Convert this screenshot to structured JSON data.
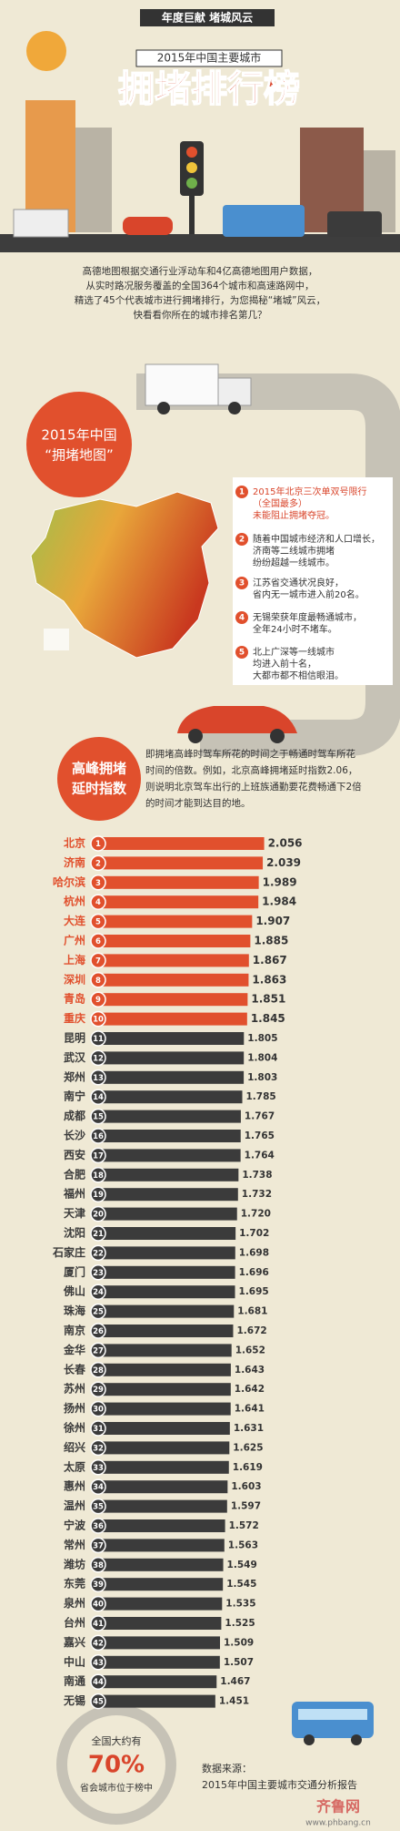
{
  "header": {
    "banner": "年度巨献 堵城风云",
    "subtitle": "2015年中国主要城市",
    "title": "拥堵排行榜"
  },
  "intro": [
    "高德地图根据交通行业浮动车和4亿高德地图用户数据，",
    "从实时路况服务覆盖的全国364个城市和高速路网中，",
    "精选了45个代表城市进行拥堵排行，为您揭秘“堵城”风云，",
    "快看看你所在的城市排名第几？"
  ],
  "map_section": {
    "title_lines": [
      "2015年中国",
      "“拥堵地图”"
    ],
    "points": [
      {
        "number": 1,
        "lines": [
          "2015年北京三次单双号限行",
          "（全国最多）",
          "未能阻止拥堵夺冠。"
        ]
      },
      {
        "number": 2,
        "lines": [
          "随着中国城市经济和人口增长，",
          "济南等二线城市拥堵",
          "纷纷超越一线城市。"
        ]
      },
      {
        "number": 3,
        "lines": [
          "江苏省交通状况良好，",
          "省内无一城市进入前20名。"
        ]
      },
      {
        "number": 4,
        "lines": [
          "无锡荣获年度最畅通城市，",
          "全年24小时不堵车。"
        ]
      },
      {
        "number": 5,
        "lines": [
          "北上广深等一线城市",
          "均进入前十名，",
          "大都市都不相信眼泪。"
        ]
      }
    ]
  },
  "index_section": {
    "title_lines": [
      "高峰拥堵",
      "延时指数"
    ],
    "description": [
      "即拥堵高峰时驾车所花的时间之于畅通时驾车所花",
      "时间的倍数。例如，北京高峰拥堵延时指数2.06，",
      "则说明北京驾车出行的上班族通勤要花费畅通下2倍",
      "的时间才能到达目的地。"
    ]
  },
  "chart_data": {
    "type": "bar",
    "orientation": "horizontal",
    "categories": [
      "北京",
      "济南",
      "哈尔滨",
      "杭州",
      "大连",
      "广州",
      "上海",
      "深圳",
      "青岛",
      "重庆",
      "昆明",
      "武汉",
      "郑州",
      "南宁",
      "成都",
      "长沙",
      "西安",
      "合肥",
      "福州",
      "天津",
      "沈阳",
      "石家庄",
      "厦门",
      "佛山",
      "珠海",
      "南京",
      "金华",
      "长春",
      "苏州",
      "扬州",
      "徐州",
      "绍兴",
      "太原",
      "惠州",
      "温州",
      "宁波",
      "常州",
      "潍坊",
      "东莞",
      "泉州",
      "台州",
      "嘉兴",
      "中山",
      "南通",
      "无锡"
    ],
    "ranks": [
      1,
      2,
      3,
      4,
      5,
      6,
      7,
      8,
      9,
      10,
      11,
      12,
      13,
      14,
      15,
      16,
      17,
      18,
      19,
      20,
      21,
      22,
      23,
      24,
      25,
      26,
      27,
      28,
      29,
      30,
      31,
      32,
      33,
      34,
      35,
      36,
      37,
      38,
      39,
      40,
      41,
      42,
      43,
      44,
      45
    ],
    "values": [
      2.056,
      2.039,
      1.989,
      1.984,
      1.907,
      1.885,
      1.867,
      1.863,
      1.851,
      1.845,
      1.805,
      1.804,
      1.803,
      1.785,
      1.767,
      1.765,
      1.764,
      1.738,
      1.732,
      1.72,
      1.702,
      1.698,
      1.696,
      1.695,
      1.681,
      1.672,
      1.652,
      1.643,
      1.642,
      1.641,
      1.631,
      1.625,
      1.619,
      1.603,
      1.597,
      1.572,
      1.563,
      1.549,
      1.545,
      1.535,
      1.525,
      1.509,
      1.507,
      1.467,
      1.451
    ],
    "value_labels": [
      "2.056",
      "2.039",
      "1.989",
      "1.984",
      "1.907",
      "1.885",
      "1.867",
      "1.863",
      "1.851",
      "1.845",
      "1.805",
      "1.804",
      "1.803",
      "1.785",
      "1.767",
      "1.765",
      "1.764",
      "1.738",
      "1.732",
      "1.720",
      "1.702",
      "1.698",
      "1.696",
      "1.695",
      "1.681",
      "1.672",
      "1.652",
      "1.643",
      "1.642",
      "1.641",
      "1.631",
      "1.625",
      "1.619",
      "1.603",
      "1.597",
      "1.572",
      "1.563",
      "1.549",
      "1.545",
      "1.535",
      "1.525",
      "1.509",
      "1.507",
      "1.467",
      "1.451"
    ],
    "colors": [
      "#e1502d",
      "#e1502d",
      "#e1502d",
      "#e1502d",
      "#e1502d",
      "#e1502d",
      "#e1502d",
      "#e1502d",
      "#e1502d",
      "#e1502d",
      "#3b3b3b",
      "#3b3b3b",
      "#3b3b3b",
      "#3b3b3b",
      "#3b3b3b",
      "#3b3b3b",
      "#3b3b3b",
      "#3b3b3b",
      "#3b3b3b",
      "#3b3b3b",
      "#3b3b3b",
      "#3b3b3b",
      "#3b3b3b",
      "#3b3b3b",
      "#3b3b3b",
      "#3b3b3b",
      "#3b3b3b",
      "#3b3b3b",
      "#3b3b3b",
      "#3b3b3b",
      "#3b3b3b",
      "#3b3b3b",
      "#3b3b3b",
      "#3b3b3b",
      "#3b3b3b",
      "#3b3b3b",
      "#3b3b3b",
      "#3b3b3b",
      "#3b3b3b",
      "#3b3b3b",
      "#3b3b3b",
      "#3b3b3b",
      "#3b3b3b",
      "#3b3b3b",
      "#3b3b3b"
    ],
    "xlim": [
      0,
      2.5
    ]
  },
  "footer": {
    "stat_lines": [
      "全国大约有",
      "70%",
      "省会城市位于榜中"
    ],
    "source_lines": [
      "数据来源：",
      "2015年中国主要城市交通分析报告"
    ],
    "watermark": [
      "齐鲁网",
      "www.phbang.cn"
    ]
  }
}
